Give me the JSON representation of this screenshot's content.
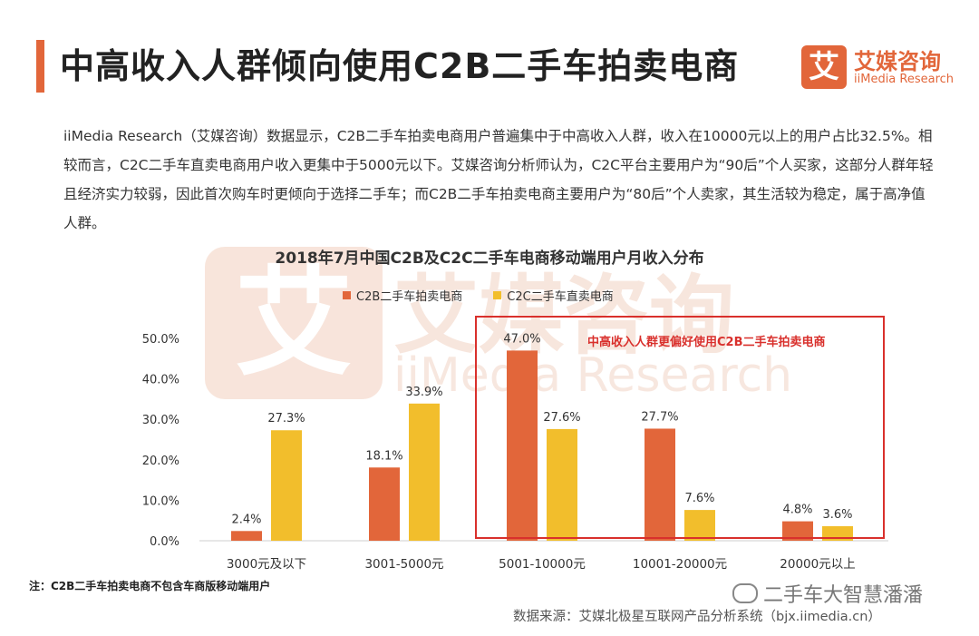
{
  "header": {
    "title": "中高收入人群倾向使用C2B二手车拍卖电商",
    "logo_cn": "艾媒咨询",
    "logo_en": "iiMedia Research",
    "logo_mark": "艾"
  },
  "body": {
    "paragraph": "iiMedia Research（艾媒咨询）数据显示，C2B二手车拍卖电商用户普遍集中于中高收入人群，收入在10000元以上的用户占比32.5%。相较而言，C2C二手车直卖电商用户收入更集中于5000元以下。艾媒咨询分析师认为，C2C平台主要用户为“90后”个人买家，这部分人群年轻且经济实力较弱，因此首次购车时更倾向于选择二手车；而C2B二手车拍卖电商主要用户为“80后”个人卖家，其生活较为稳定，属于高净值人群。"
  },
  "watermark": {
    "mark": "艾",
    "cn": "艾媒咨询",
    "en": "iiMedia Research"
  },
  "chart_data": {
    "type": "bar",
    "title": "2018年7月中国C2B及C2C二手车电商移动端用户月收入分布",
    "categories": [
      "3000元及以下",
      "3001-5000元",
      "5001-10000元",
      "10001-20000元",
      "20000元以上"
    ],
    "series": [
      {
        "name": "C2B二手车拍卖电商",
        "values": [
          2.4,
          18.1,
          47.0,
          27.7,
          4.8
        ],
        "color": "#e2663a"
      },
      {
        "name": "C2C二手车直卖电商",
        "values": [
          27.3,
          33.9,
          27.6,
          7.6,
          3.6
        ],
        "color": "#f2be2c"
      }
    ],
    "y_ticks": [
      "0.0%",
      "10.0%",
      "20.0%",
      "30.0%",
      "40.0%",
      "50.0%"
    ],
    "ylim": [
      0,
      50
    ],
    "legend_position": "top",
    "grid": false,
    "annotation": "中高收入人群更偏好使用C2B二手车拍卖电商"
  },
  "footer": {
    "note": "注：C2B二手车拍卖电商不包含车商版移动端用户",
    "wechat": "二手车大智慧潘潘",
    "source": "数据来源：艾媒北极星互联网产品分析系统（bjx.iimedia.cn）"
  }
}
